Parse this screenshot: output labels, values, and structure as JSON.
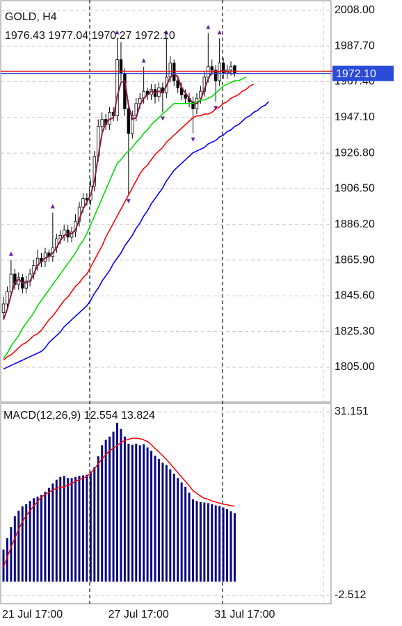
{
  "chart_data": [
    {
      "type": "candlestick",
      "title": "GOLD, H4",
      "ohlc_labels": [
        "1976.43",
        "1977.04",
        "1970.27",
        "1972.10"
      ],
      "color": "#000000",
      "open": [
        1836,
        1841,
        1848,
        1858,
        1852,
        1856,
        1850,
        1854,
        1858,
        1863,
        1867,
        1865,
        1870,
        1868,
        1873,
        1878,
        1880,
        1883,
        1879,
        1882,
        1888,
        1896,
        1901,
        1900,
        1908,
        1925,
        1942,
        1946,
        1943,
        1950,
        1948,
        1980,
        1972,
        1952,
        1938,
        1948,
        1955,
        1958,
        1962,
        1960,
        1963,
        1959,
        1964,
        1961,
        1970,
        1978,
        1968,
        1964,
        1960,
        1958,
        1956,
        1952,
        1958,
        1962,
        1970,
        1976,
        1974,
        1968,
        1978,
        1972,
        1974,
        1976.43,
        null,
        null,
        null,
        null,
        null,
        null,
        null,
        null,
        null
      ],
      "high": [
        1845,
        1851,
        1866,
        1861,
        1859,
        1858,
        1857,
        1861,
        1866,
        1872,
        1870,
        1873,
        1872,
        1893,
        1881,
        1883,
        1886,
        1886,
        1885,
        1892,
        1899,
        1904,
        1904,
        1912,
        1928,
        1946,
        1950,
        1949,
        1953,
        1953,
        1992,
        1990,
        1975,
        1955,
        1951,
        1958,
        1961,
        1976,
        1964,
        1966,
        1966,
        1967,
        1967,
        1992,
        1982,
        1980,
        1971,
        1967,
        1963,
        1961,
        1959,
        1961,
        1965,
        1973,
        1995,
        1980,
        1977,
        1992,
        1981,
        1977,
        1979,
        1977.04,
        null,
        null,
        null,
        null,
        null,
        null,
        null,
        null,
        null
      ],
      "low": [
        1833,
        1839,
        1846,
        1849,
        1849,
        1847,
        1847,
        1851,
        1855,
        1860,
        1862,
        1862,
        1865,
        1865,
        1870,
        1875,
        1877,
        1876,
        1876,
        1879,
        1885,
        1893,
        1897,
        1897,
        1905,
        1922,
        1939,
        1940,
        1940,
        1945,
        1945,
        1968,
        1948,
        1903,
        1935,
        1945,
        1952,
        1955,
        1957,
        1957,
        1955,
        1956,
        1950,
        1958,
        1967,
        1965,
        1961,
        1957,
        1955,
        1953,
        1938,
        1949,
        1955,
        1959,
        1967,
        1971,
        1956,
        1965,
        1969,
        1969,
        1971,
        1970.27,
        null,
        null,
        null,
        null,
        null,
        null,
        null,
        null,
        null
      ],
      "close": [
        1841,
        1848,
        1858,
        1852,
        1856,
        1850,
        1854,
        1858,
        1863,
        1867,
        1865,
        1870,
        1868,
        1873,
        1878,
        1880,
        1883,
        1879,
        1882,
        1888,
        1896,
        1901,
        1900,
        1908,
        1925,
        1942,
        1946,
        1943,
        1950,
        1948,
        1980,
        1972,
        1952,
        1938,
        1948,
        1955,
        1958,
        1962,
        1960,
        1963,
        1959,
        1964,
        1961,
        1970,
        1978,
        1968,
        1964,
        1960,
        1958,
        1956,
        1952,
        1958,
        1962,
        1970,
        1976,
        1974,
        1968,
        1978,
        1972,
        1974,
        1976,
        1972.1,
        null,
        null,
        null,
        null,
        null,
        null,
        null,
        null,
        null
      ],
      "fractal_color": "#6a1fa8",
      "lines": [
        {
          "color": "#8b1a45",
          "values": [
            1832,
            1838,
            1846,
            1853,
            1855,
            1853,
            1853,
            1854,
            1858,
            1863,
            1865,
            1867,
            1868,
            1870,
            1873,
            1877,
            1880,
            1881,
            1881,
            1883,
            1889,
            1895,
            1899,
            1903,
            1911,
            1925,
            1938,
            1944,
            1946,
            1947,
            1959,
            1967,
            1968,
            1954,
            1946,
            1947,
            1954,
            1958,
            1960,
            1962,
            1961,
            1962,
            1961,
            1965,
            1970,
            1972,
            1970,
            1964,
            1961,
            1958,
            1955,
            1955,
            1957,
            1963,
            1969,
            1973,
            1973,
            1973,
            1974,
            1973,
            1972,
            1972,
            null,
            null,
            null,
            null,
            null,
            null,
            null,
            null,
            null
          ]
        },
        {
          "color": "#00dd00",
          "values": [
            1810,
            1813,
            1817,
            1820,
            1823,
            1827,
            1830,
            1833,
            1836,
            1840,
            1843,
            1846,
            1849,
            1852,
            1855,
            1858,
            1861,
            1864,
            1867,
            1870,
            1874,
            1877,
            1881,
            1886,
            1891,
            1896,
            1901,
            1906,
            1911,
            1916,
            1921,
            1923,
            1926,
            1928,
            1930,
            1933,
            1935,
            1938,
            1940,
            1943,
            1945,
            1947,
            1949,
            1951,
            1953,
            1955,
            1955,
            1955,
            1955,
            1955,
            1955,
            1956,
            1957,
            1957,
            1958,
            1959,
            1961,
            1963,
            1965,
            1966,
            1967,
            1968,
            1968,
            1969,
            1970,
            null,
            null,
            null,
            null,
            null,
            null
          ]
        },
        {
          "color": "#ff0000",
          "values": [
            1809,
            1811,
            1812,
            1814,
            1816,
            1818,
            1819,
            1821,
            1823,
            1824,
            1826,
            1829,
            1832,
            1834,
            1837,
            1840,
            1843,
            1845,
            1848,
            1851,
            1853,
            1856,
            1858,
            1862,
            1866,
            1870,
            1874,
            1879,
            1883,
            1887,
            1891,
            1895,
            1899,
            1903,
            1907,
            1911,
            1915,
            1918,
            1920,
            1923,
            1926,
            1928,
            1930,
            1933,
            1935,
            1937,
            1939,
            1941,
            1943,
            1945,
            1947,
            1948,
            1948,
            1949,
            1949,
            1950,
            1952,
            1953,
            1955,
            1956,
            1958,
            1959,
            1960,
            1962,
            1963,
            1965,
            1966,
            null,
            null,
            null,
            null
          ]
        },
        {
          "color": "#0000ff",
          "values": [
            1804,
            1805,
            1806,
            1807,
            1808,
            1809,
            1810,
            1811,
            1812,
            1813,
            1814,
            1816,
            1819,
            1821,
            1823,
            1825,
            1828,
            1830,
            1832,
            1834,
            1836,
            1838,
            1840,
            1843,
            1847,
            1850,
            1854,
            1857,
            1860,
            1864,
            1867,
            1870,
            1874,
            1877,
            1880,
            1884,
            1887,
            1891,
            1894,
            1898,
            1901,
            1904,
            1907,
            1911,
            1914,
            1917,
            1919,
            1921,
            1923,
            1925,
            1927,
            1928,
            1929,
            1930,
            1932,
            1933,
            1934,
            1936,
            1937,
            1939,
            1940,
            1942,
            1943,
            1945,
            1947,
            1948,
            1950,
            1951,
            1953,
            1954,
            1956
          ]
        }
      ],
      "bid": {
        "value": 1972.1,
        "label": "1972.10",
        "color": "#2a4bd7"
      },
      "ask": {
        "value": 1973.4,
        "color": "#e01010"
      },
      "ylim": [
        1785.2,
        2013.1
      ],
      "yticks": [
        {
          "value": 2008,
          "label": "2008.00"
        },
        {
          "value": 1987.7,
          "label": "1987.70"
        },
        {
          "value": 1967.4,
          "label": "1967.40"
        },
        {
          "value": 1947.1,
          "label": "1947.10"
        },
        {
          "value": 1926.8,
          "label": "1926.80"
        },
        {
          "value": 1906.5,
          "label": "1906.50"
        },
        {
          "value": 1886.2,
          "label": "1886.20"
        },
        {
          "value": 1865.9,
          "label": "1865.90"
        },
        {
          "value": 1845.6,
          "label": "1845.60"
        },
        {
          "value": 1825.3,
          "label": "1825.30"
        },
        {
          "value": 1805,
          "label": "1805.00"
        }
      ],
      "grid": true
    },
    {
      "type": "macd",
      "title": "MACD(12,26,9)",
      "categories": [
        "21 Jul 17:00",
        null,
        null,
        null,
        null,
        null,
        null,
        null,
        null,
        null,
        null,
        null,
        null,
        null,
        null,
        null,
        null,
        null,
        null,
        null,
        null,
        null,
        null,
        null,
        null,
        null,
        null,
        null,
        "27 Jul 17:00",
        null,
        null,
        null,
        null,
        null,
        null,
        null,
        null,
        null,
        null,
        null,
        null,
        null,
        null,
        null,
        null,
        null,
        null,
        null,
        null,
        null,
        null,
        null,
        null,
        null,
        null,
        null,
        "31 Jul 17:00",
        null,
        null,
        null,
        null,
        null,
        null,
        null,
        null,
        null,
        null,
        null,
        null,
        null,
        null
      ],
      "series": [
        {
          "type": "bar",
          "color": "#0a0a80",
          "values": [
            5.9,
            8,
            10,
            12,
            13,
            13.8,
            14.2,
            14.8,
            15.3,
            15.6,
            15.9,
            16.5,
            17.2,
            18,
            18.7,
            19.2,
            19.4,
            19,
            19,
            19.2,
            19.4,
            19.5,
            19.6,
            20.2,
            21,
            23,
            25,
            26,
            26.6,
            27.5,
            29.1,
            28,
            26.6,
            25.3,
            25.1,
            25.3,
            25,
            25.2,
            24.6,
            24,
            23.1,
            22.5,
            21.8,
            21.4,
            20.6,
            19.8,
            19,
            18.2,
            17.4,
            16.3,
            15.1,
            14.8,
            14.6,
            14.5,
            14.4,
            14.2,
            14,
            13.9,
            13.6,
            13.3,
            12.9,
            12.554,
            null,
            null,
            null,
            null,
            null,
            null,
            null,
            null,
            null
          ]
        },
        {
          "type": "line",
          "color": "#ff0000",
          "values": [
            2.7,
            4.5,
            6.3,
            8,
            9.6,
            11,
            12.1,
            13,
            13.9,
            14.7,
            15.5,
            16,
            16.4,
            16.8,
            17.1,
            17.3,
            17.4,
            17.7,
            18,
            18.4,
            18.7,
            19,
            19.3,
            19.9,
            20.7,
            21.6,
            22.5,
            23.3,
            24,
            24.5,
            25,
            25.5,
            25.9,
            26.1,
            26.3,
            26.3,
            26.2,
            26,
            25.7,
            25.1,
            24.4,
            23.8,
            23.1,
            22.4,
            21.6,
            20.8,
            20,
            19.2,
            18.4,
            17.6,
            16.7,
            16.2,
            15.7,
            15.3,
            15.1,
            14.8,
            14.6,
            14.4,
            14.2,
            14.1,
            13.95,
            13.824,
            null,
            null,
            null,
            null,
            null,
            null,
            null,
            null,
            null
          ]
        }
      ],
      "ylim": [
        -2.512,
        31.151
      ],
      "yticks": [
        31.151,
        -2.512
      ],
      "grid": true
    }
  ]
}
